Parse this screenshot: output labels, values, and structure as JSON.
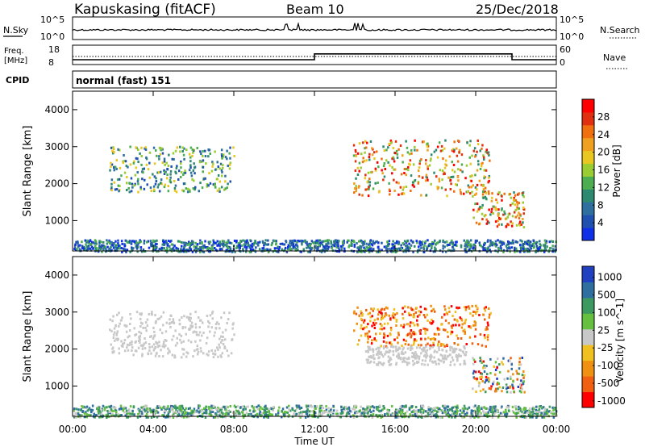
{
  "header": {
    "station": "Kapuskasing (fitACF)",
    "beam": "Beam 10",
    "date": "25/Dec/2018"
  },
  "noise_panel": {
    "left_label": "N.Sky",
    "left_tick_top": "10^5",
    "left_tick_bottom": "10^0",
    "right_label": "N.Search",
    "right_tick_top": "10^5",
    "right_tick_bottom": "10^0"
  },
  "freq_panel": {
    "left_label_line1": "Freq.",
    "left_label_line2": "[MHz]",
    "left_tick_top": "18",
    "left_tick_bottom": "8",
    "right_label": "Nave",
    "right_tick_top": "60",
    "right_tick_bottom": "0",
    "freq_steps": [
      {
        "t_start": 0,
        "t_end": 12,
        "value": 10.5
      },
      {
        "t_start": 12,
        "t_end": 21.8,
        "value": 13.5
      },
      {
        "t_start": 21.8,
        "t_end": 24,
        "value": 10.5
      }
    ],
    "nave_level": 25
  },
  "cpid": {
    "label": "CPID",
    "value": "normal (fast) 151"
  },
  "chart_data": [
    {
      "type": "heatmap",
      "name": "power",
      "ylabel": "Slant Range [km]",
      "ylim": [
        180,
        4500
      ],
      "yticks": [
        1000,
        2000,
        3000,
        4000
      ],
      "xlim": [
        0,
        24
      ],
      "colorbar_label": "Power [dB]",
      "colorbar_ticks": [
        "4",
        "8",
        "12",
        "16",
        "20",
        "24",
        "28"
      ],
      "colorbar_colors": [
        "#1030e8",
        "#2050b0",
        "#2f6fa0",
        "#2d8a70",
        "#4cae50",
        "#9acd32",
        "#e8c820",
        "#f0a020",
        "#f07010",
        "#e03010",
        "#ff0000"
      ],
      "regions": [
        {
          "t_start": 1.8,
          "t_end": 8.0,
          "r_start": 1800,
          "r_end": 3050,
          "level": "mid"
        },
        {
          "t_start": 13.9,
          "t_end": 20.7,
          "r_start": 1700,
          "r_end": 3200,
          "level": "high"
        },
        {
          "t_start": 19.8,
          "t_end": 22.4,
          "r_start": 850,
          "r_end": 1800,
          "level": "high"
        },
        {
          "t_start": 0.0,
          "t_end": 24.0,
          "r_start": 180,
          "r_end": 500,
          "level": "mixed"
        }
      ]
    },
    {
      "type": "heatmap",
      "name": "velocity",
      "ylabel": "Slant Range [km]",
      "ylim": [
        180,
        4500
      ],
      "yticks": [
        1000,
        2000,
        3000,
        4000
      ],
      "xlim": [
        0,
        24
      ],
      "xticks": [
        "00:00",
        "04:00",
        "08:00",
        "12:00",
        "16:00",
        "20:00",
        "00:00"
      ],
      "xlabel": "Time UT",
      "colorbar_label": "Velocity [m s^-1]",
      "colorbar_ticks": [
        "1000",
        "500",
        "100",
        "25",
        "-25",
        "-100",
        "-500",
        "-1000"
      ],
      "colorbar_colors": [
        "#2040c0",
        "#2f6fa0",
        "#3c9a60",
        "#66c040",
        "#c8c8c8",
        "#f0c020",
        "#f09010",
        "#f06010",
        "#ff0000"
      ],
      "regions": [
        {
          "t_start": 1.8,
          "t_end": 8.0,
          "r_start": 1800,
          "r_end": 3050,
          "level": "zero"
        },
        {
          "t_start": 13.9,
          "t_end": 20.7,
          "r_start": 2100,
          "r_end": 3200,
          "level": "neg"
        },
        {
          "t_start": 14.5,
          "t_end": 19.5,
          "r_start": 1600,
          "r_end": 2100,
          "level": "zero"
        },
        {
          "t_start": 19.8,
          "t_end": 22.4,
          "r_start": 850,
          "r_end": 1800,
          "level": "mixed"
        },
        {
          "t_start": 0.0,
          "t_end": 24.0,
          "r_start": 180,
          "r_end": 500,
          "level": "pos"
        }
      ]
    }
  ]
}
